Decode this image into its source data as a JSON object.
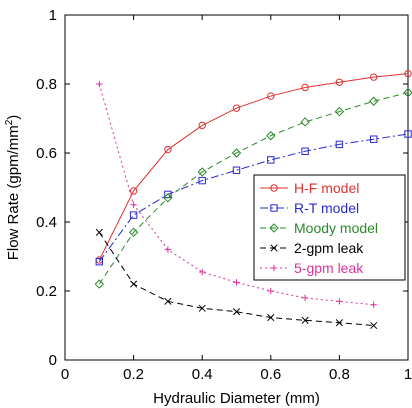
{
  "chart_data": {
    "type": "line",
    "xlabel": "Hydraulic Diameter (mm)",
    "ylabel_main": "Flow Rate (gpm/mm",
    "ylabel_sup": "2",
    "ylabel_end": ")",
    "xlim": [
      0,
      1
    ],
    "ylim": [
      0,
      1
    ],
    "x_ticks": [
      0,
      0.2,
      0.4,
      0.6,
      0.8,
      1
    ],
    "x_tick_labels": [
      "0",
      "0.2",
      "0.4",
      "0.6",
      "0.8",
      "1"
    ],
    "y_ticks": [
      0,
      0.2,
      0.4,
      0.6,
      0.8,
      1
    ],
    "y_tick_labels": [
      "0",
      "0.2",
      "0.4",
      "0.6",
      "0.8",
      "1"
    ],
    "grid": false,
    "legend_position": "center-right",
    "series": [
      {
        "name": "H-F model",
        "color": "#e03030",
        "line": "solid",
        "marker": "circle",
        "x": [
          0.1,
          0.2,
          0.3,
          0.4,
          0.5,
          0.6,
          0.7,
          0.8,
          0.9,
          1.0
        ],
        "y": [
          0.29,
          0.49,
          0.61,
          0.68,
          0.73,
          0.765,
          0.79,
          0.805,
          0.82,
          0.83
        ]
      },
      {
        "name": "R-T model",
        "color": "#2a2ad0",
        "line": "dashdot",
        "marker": "square",
        "x": [
          0.1,
          0.2,
          0.3,
          0.4,
          0.5,
          0.6,
          0.7,
          0.8,
          0.9,
          1.0
        ],
        "y": [
          0.285,
          0.42,
          0.48,
          0.52,
          0.55,
          0.58,
          0.605,
          0.625,
          0.64,
          0.655
        ]
      },
      {
        "name": "Moody model",
        "color": "#2a8a2a",
        "line": "dashed",
        "marker": "diamond",
        "x": [
          0.1,
          0.2,
          0.3,
          0.4,
          0.5,
          0.6,
          0.7,
          0.8,
          0.9,
          1.0
        ],
        "y": [
          0.22,
          0.37,
          0.47,
          0.545,
          0.6,
          0.65,
          0.69,
          0.72,
          0.75,
          0.775
        ]
      },
      {
        "name": "2-gpm leak",
        "color": "#000000",
        "line": "dashed",
        "marker": "x",
        "x": [
          0.1,
          0.2,
          0.3,
          0.4,
          0.5,
          0.6,
          0.7,
          0.8,
          0.9
        ],
        "y": [
          0.37,
          0.22,
          0.17,
          0.15,
          0.14,
          0.123,
          0.115,
          0.108,
          0.1
        ]
      },
      {
        "name": "5-gpm leak",
        "color": "#e0309a",
        "line": "dotted",
        "marker": "plus",
        "x": [
          0.1,
          0.2,
          0.3,
          0.4,
          0.5,
          0.6,
          0.7,
          0.8,
          0.9
        ],
        "y": [
          0.8,
          0.45,
          0.32,
          0.255,
          0.225,
          0.2,
          0.18,
          0.17,
          0.16
        ]
      }
    ]
  }
}
